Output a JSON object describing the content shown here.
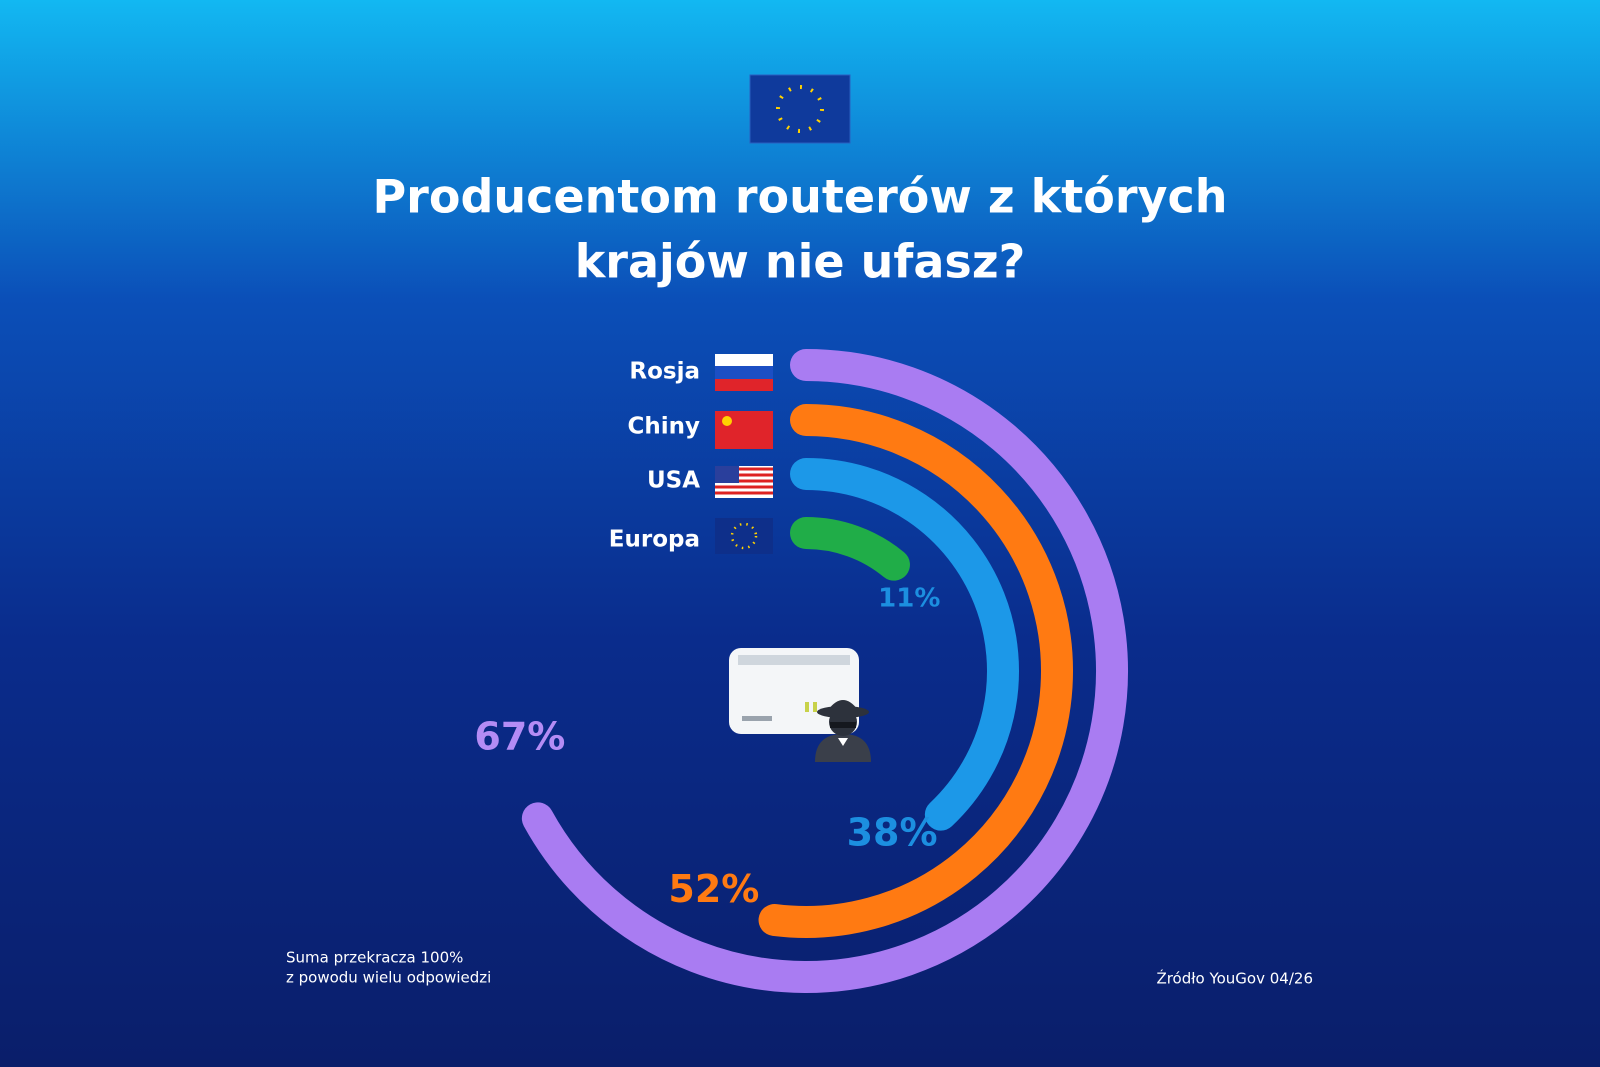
{
  "chart_data": {
    "type": "radial-bar",
    "title": [
      "Producentom routerów z których",
      "krajów nie ufasz?"
    ],
    "categories": [
      "Rosja",
      "Chiny",
      "USA",
      "Europa"
    ],
    "values": [
      67,
      52,
      38,
      11
    ],
    "value_labels": [
      "67%",
      "52%",
      "38%",
      "11%"
    ],
    "colors": [
      "#a97cf2",
      "#ff7a12",
      "#1c98e8",
      "#20ad48"
    ],
    "label_colors": [
      "#b48cf5",
      "#ff7a12",
      "#1c8fe0",
      "#1c8fe0"
    ],
    "vlim": [
      0,
      100
    ],
    "footnote": [
      "Suma przekracza 100%",
      "z powodu wielu odpowiedzi"
    ],
    "source": "Źródło YouGov 04/26"
  }
}
